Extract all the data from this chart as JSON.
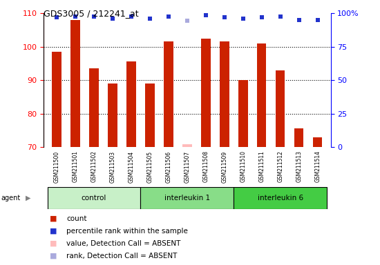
{
  "title": "GDS3005 / 212241_at",
  "samples": [
    "GSM211500",
    "GSM211501",
    "GSM211502",
    "GSM211503",
    "GSM211504",
    "GSM211505",
    "GSM211506",
    "GSM211507",
    "GSM211508",
    "GSM211509",
    "GSM211510",
    "GSM211511",
    "GSM211512",
    "GSM211513",
    "GSM211514"
  ],
  "bar_values": [
    98.5,
    108.0,
    93.5,
    89.0,
    95.5,
    89.0,
    101.5,
    70.8,
    102.5,
    101.5,
    90.0,
    101.0,
    93.0,
    75.5,
    73.0
  ],
  "bar_absent": [
    false,
    false,
    false,
    false,
    false,
    false,
    false,
    true,
    false,
    false,
    false,
    false,
    false,
    false,
    false
  ],
  "rank_values": [
    97.0,
    97.5,
    97.5,
    96.0,
    97.5,
    96.0,
    97.5,
    94.5,
    98.5,
    97.0,
    96.0,
    97.0,
    97.5,
    95.0,
    95.0
  ],
  "rank_absent": [
    false,
    false,
    false,
    false,
    false,
    false,
    false,
    true,
    false,
    false,
    false,
    false,
    false,
    false,
    false
  ],
  "groups": [
    {
      "label": "control",
      "start": 0,
      "end": 4
    },
    {
      "label": "interleukin 1",
      "start": 5,
      "end": 9
    },
    {
      "label": "interleukin 6",
      "start": 10,
      "end": 14
    }
  ],
  "group_colors": [
    "#c8f0c8",
    "#88dd88",
    "#44cc44"
  ],
  "ylim_left": [
    70,
    110
  ],
  "ylim_right": [
    0,
    100
  ],
  "yticks_left": [
    70,
    80,
    90,
    100,
    110
  ],
  "yticks_right": [
    0,
    25,
    50,
    75,
    100
  ],
  "yticklabels_right": [
    "0",
    "25",
    "50",
    "75",
    "100%"
  ],
  "bar_color": "#cc2200",
  "bar_absent_color": "#ffbbbb",
  "rank_color": "#2233cc",
  "rank_absent_color": "#aaaadd",
  "plot_bg": "#ffffff",
  "bar_width": 0.5,
  "xlabel_bg": "#cccccc",
  "agent_label": "agent"
}
